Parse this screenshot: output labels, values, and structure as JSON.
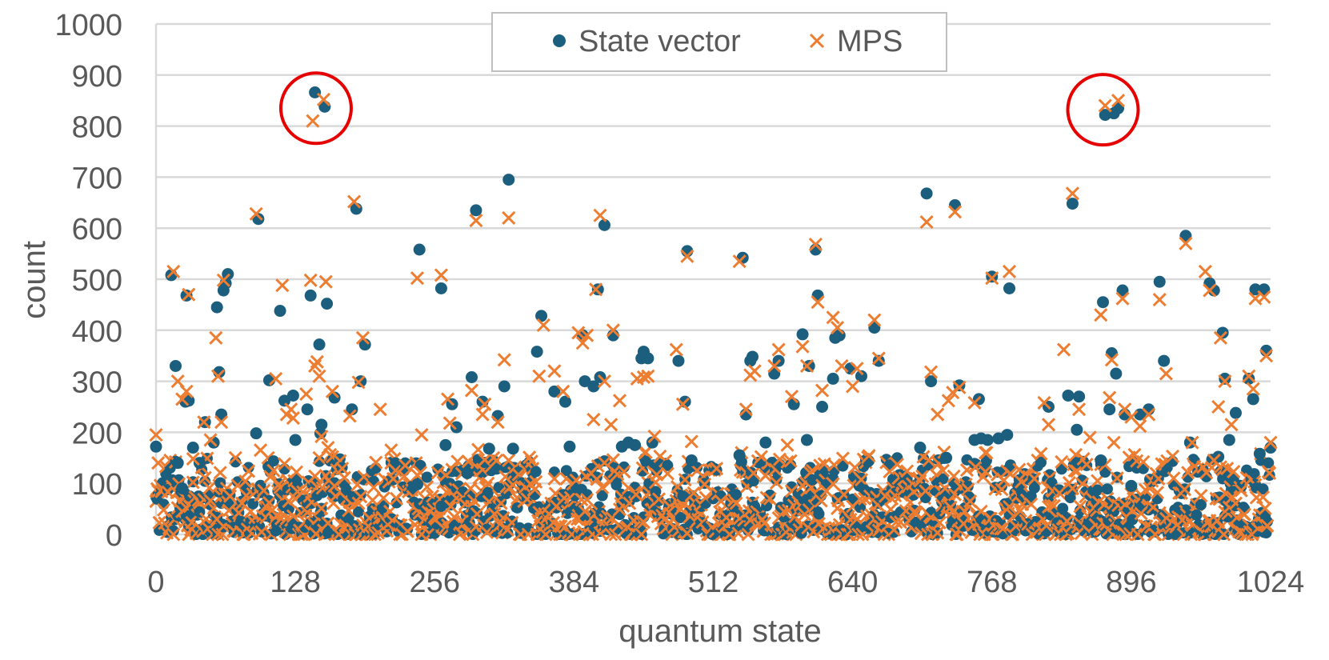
{
  "chart_data": {
    "type": "scatter",
    "title": "",
    "xlabel": "quantum state",
    "ylabel": "count",
    "xlim": [
      0,
      1024
    ],
    "ylim": [
      0,
      1000
    ],
    "x_ticks": [
      0,
      128,
      256,
      384,
      512,
      640,
      768,
      896,
      1024
    ],
    "y_ticks": [
      0,
      100,
      200,
      300,
      400,
      500,
      600,
      700,
      800,
      900,
      1000
    ],
    "grid": "horizontal",
    "legend_position": "top-center",
    "annotations": [
      {
        "type": "circle",
        "center": [
          147,
          835
        ]
      },
      {
        "type": "circle",
        "center": [
          870,
          832
        ]
      }
    ],
    "colors": {
      "state_vector": "#1b5e7e",
      "mps": "#ed7d31",
      "annotation": "#e60000",
      "grid": "#d9d9d9",
      "text": "#595959"
    },
    "series": [
      {
        "name": "State vector",
        "marker": "circle",
        "points": [
          [
            0,
            172
          ],
          [
            14,
            508
          ],
          [
            18,
            330
          ],
          [
            20,
            140
          ],
          [
            24,
            90
          ],
          [
            27,
            260
          ],
          [
            28,
            468
          ],
          [
            30,
            262
          ],
          [
            34,
            170
          ],
          [
            40,
            140
          ],
          [
            45,
            220
          ],
          [
            53,
            180
          ],
          [
            56,
            445
          ],
          [
            58,
            318
          ],
          [
            60,
            235
          ],
          [
            62,
            478
          ],
          [
            64,
            492
          ],
          [
            66,
            510
          ],
          [
            92,
            198
          ],
          [
            94,
            618
          ],
          [
            104,
            302
          ],
          [
            114,
            438
          ],
          [
            118,
            262
          ],
          [
            126,
            272
          ],
          [
            128,
            185
          ],
          [
            139,
            245
          ],
          [
            142,
            468
          ],
          [
            146,
            866
          ],
          [
            150,
            372
          ],
          [
            151,
            198
          ],
          [
            152,
            215
          ],
          [
            155,
            838
          ],
          [
            157,
            452
          ],
          [
            164,
            268
          ],
          [
            180,
            245
          ],
          [
            184,
            638
          ],
          [
            188,
            300
          ],
          [
            192,
            372
          ],
          [
            240,
            98
          ],
          [
            242,
            558
          ],
          [
            262,
            482
          ],
          [
            266,
            175
          ],
          [
            272,
            255
          ],
          [
            276,
            210
          ],
          [
            286,
            120
          ],
          [
            290,
            308
          ],
          [
            294,
            635
          ],
          [
            300,
            260
          ],
          [
            306,
            168
          ],
          [
            314,
            232
          ],
          [
            320,
            290
          ],
          [
            324,
            695
          ],
          [
            328,
            168
          ],
          [
            350,
            358
          ],
          [
            354,
            428
          ],
          [
            366,
            280
          ],
          [
            376,
            260
          ],
          [
            380,
            172
          ],
          [
            392,
            390
          ],
          [
            394,
            300
          ],
          [
            402,
            290
          ],
          [
            406,
            480
          ],
          [
            408,
            308
          ],
          [
            412,
            606
          ],
          [
            420,
            390
          ],
          [
            428,
            172
          ],
          [
            434,
            180
          ],
          [
            440,
            175
          ],
          [
            446,
            345
          ],
          [
            448,
            358
          ],
          [
            452,
            345
          ],
          [
            456,
            180
          ],
          [
            480,
            340
          ],
          [
            486,
            260
          ],
          [
            488,
            555
          ],
          [
            492,
            145
          ],
          [
            536,
            155
          ],
          [
            539,
            542
          ],
          [
            542,
            235
          ],
          [
            546,
            340
          ],
          [
            548,
            348
          ],
          [
            560,
            180
          ],
          [
            568,
            315
          ],
          [
            572,
            340
          ],
          [
            586,
            255
          ],
          [
            594,
            392
          ],
          [
            598,
            185
          ],
          [
            600,
            330
          ],
          [
            606,
            558
          ],
          [
            608,
            468
          ],
          [
            612,
            250
          ],
          [
            622,
            305
          ],
          [
            624,
            385
          ],
          [
            628,
            390
          ],
          [
            638,
            325
          ],
          [
            648,
            310
          ],
          [
            660,
            405
          ],
          [
            664,
            340
          ],
          [
            702,
            170
          ],
          [
            708,
            668
          ],
          [
            712,
            300
          ],
          [
            726,
            150
          ],
          [
            734,
            645
          ],
          [
            738,
            292
          ],
          [
            752,
            185
          ],
          [
            756,
            265
          ],
          [
            758,
            188
          ],
          [
            764,
            185
          ],
          [
            768,
            505
          ],
          [
            774,
            188
          ],
          [
            782,
            195
          ],
          [
            784,
            482
          ],
          [
            820,
            250
          ],
          [
            838,
            272
          ],
          [
            842,
            648
          ],
          [
            846,
            205
          ],
          [
            848,
            270
          ],
          [
            868,
            145
          ],
          [
            870,
            455
          ],
          [
            872,
            822
          ],
          [
            876,
            245
          ],
          [
            878,
            355
          ],
          [
            880,
            825
          ],
          [
            882,
            315
          ],
          [
            884,
            835
          ],
          [
            888,
            478
          ],
          [
            890,
            235
          ],
          [
            896,
            95
          ],
          [
            904,
            235
          ],
          [
            912,
            245
          ],
          [
            922,
            495
          ],
          [
            926,
            340
          ],
          [
            946,
            585
          ],
          [
            950,
            180
          ],
          [
            968,
            492
          ],
          [
            972,
            478
          ],
          [
            976,
            152
          ],
          [
            980,
            395
          ],
          [
            982,
            305
          ],
          [
            986,
            185
          ],
          [
            992,
            238
          ],
          [
            1004,
            305
          ],
          [
            1008,
            265
          ],
          [
            1010,
            480
          ],
          [
            1014,
            158
          ],
          [
            1018,
            480
          ],
          [
            1020,
            360
          ],
          [
            1024,
            170
          ]
        ]
      },
      {
        "name": "MPS",
        "marker": "x",
        "points": [
          [
            0,
            195
          ],
          [
            2,
            140
          ],
          [
            16,
            515
          ],
          [
            20,
            300
          ],
          [
            24,
            265
          ],
          [
            28,
            280
          ],
          [
            30,
            470
          ],
          [
            34,
            148
          ],
          [
            44,
            220
          ],
          [
            50,
            185
          ],
          [
            55,
            385
          ],
          [
            57,
            310
          ],
          [
            60,
            220
          ],
          [
            62,
            498
          ],
          [
            92,
            628
          ],
          [
            96,
            165
          ],
          [
            110,
            305
          ],
          [
            116,
            488
          ],
          [
            120,
            235
          ],
          [
            124,
            245
          ],
          [
            126,
            228
          ],
          [
            138,
            275
          ],
          [
            142,
            498
          ],
          [
            144,
            810
          ],
          [
            146,
            330
          ],
          [
            148,
            338
          ],
          [
            150,
            310
          ],
          [
            152,
            192
          ],
          [
            154,
            852
          ],
          [
            156,
            495
          ],
          [
            158,
            170
          ],
          [
            162,
            280
          ],
          [
            178,
            232
          ],
          [
            182,
            652
          ],
          [
            186,
            298
          ],
          [
            190,
            385
          ],
          [
            206,
            245
          ],
          [
            216,
            165
          ],
          [
            240,
            502
          ],
          [
            244,
            195
          ],
          [
            262,
            508
          ],
          [
            268,
            265
          ],
          [
            270,
            218
          ],
          [
            290,
            282
          ],
          [
            294,
            615
          ],
          [
            300,
            235
          ],
          [
            302,
            255
          ],
          [
            314,
            220
          ],
          [
            320,
            342
          ],
          [
            324,
            620
          ],
          [
            352,
            310
          ],
          [
            356,
            410
          ],
          [
            366,
            320
          ],
          [
            374,
            280
          ],
          [
            388,
            395
          ],
          [
            392,
            375
          ],
          [
            396,
            390
          ],
          [
            402,
            225
          ],
          [
            404,
            480
          ],
          [
            408,
            625
          ],
          [
            412,
            300
          ],
          [
            418,
            215
          ],
          [
            420,
            400
          ],
          [
            426,
            262
          ],
          [
            442,
            305
          ],
          [
            448,
            308
          ],
          [
            452,
            310
          ],
          [
            458,
            192
          ],
          [
            478,
            362
          ],
          [
            484,
            255
          ],
          [
            488,
            545
          ],
          [
            492,
            182
          ],
          [
            536,
            535
          ],
          [
            542,
            245
          ],
          [
            546,
            312
          ],
          [
            550,
            320
          ],
          [
            568,
            330
          ],
          [
            572,
            362
          ],
          [
            580,
            175
          ],
          [
            584,
            270
          ],
          [
            594,
            368
          ],
          [
            598,
            330
          ],
          [
            606,
            568
          ],
          [
            608,
            455
          ],
          [
            612,
            282
          ],
          [
            622,
            425
          ],
          [
            626,
            405
          ],
          [
            630,
            330
          ],
          [
            640,
            290
          ],
          [
            644,
            325
          ],
          [
            660,
            420
          ],
          [
            664,
            345
          ],
          [
            708,
            612
          ],
          [
            712,
            318
          ],
          [
            718,
            235
          ],
          [
            728,
            262
          ],
          [
            732,
            278
          ],
          [
            734,
            632
          ],
          [
            738,
            288
          ],
          [
            752,
            258
          ],
          [
            762,
            160
          ],
          [
            768,
            502
          ],
          [
            784,
            515
          ],
          [
            816,
            258
          ],
          [
            820,
            215
          ],
          [
            834,
            362
          ],
          [
            842,
            668
          ],
          [
            848,
            245
          ],
          [
            858,
            190
          ],
          [
            868,
            430
          ],
          [
            872,
            840
          ],
          [
            876,
            268
          ],
          [
            878,
            342
          ],
          [
            880,
            180
          ],
          [
            884,
            850
          ],
          [
            888,
            462
          ],
          [
            890,
            245
          ],
          [
            896,
            230
          ],
          [
            904,
            212
          ],
          [
            912,
            235
          ],
          [
            922,
            460
          ],
          [
            928,
            315
          ],
          [
            946,
            570
          ],
          [
            952,
            180
          ],
          [
            964,
            515
          ],
          [
            968,
            478
          ],
          [
            972,
            145
          ],
          [
            976,
            250
          ],
          [
            978,
            385
          ],
          [
            982,
            300
          ],
          [
            988,
            215
          ],
          [
            1004,
            310
          ],
          [
            1008,
            285
          ],
          [
            1010,
            462
          ],
          [
            1018,
            465
          ],
          [
            1020,
            350
          ],
          [
            1024,
            180
          ]
        ]
      }
    ],
    "noise": {
      "x_count": 1024,
      "note": "dense low-count points for all remaining states, counts 0-160"
    }
  }
}
